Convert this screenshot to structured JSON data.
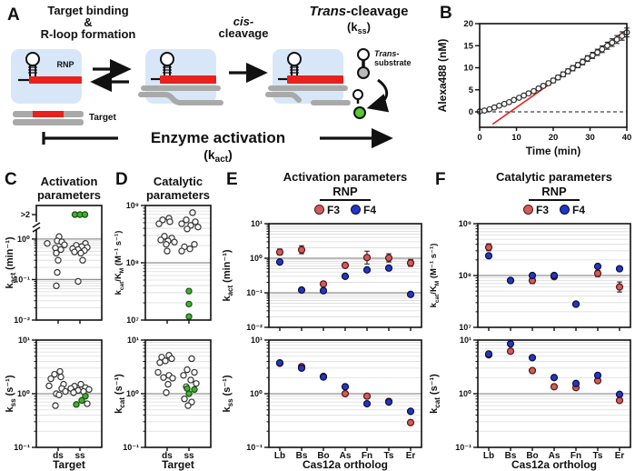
{
  "figure": {
    "panels": {
      "a": {
        "label": "A",
        "step1": [
          "Target binding",
          "&",
          "R-loop formation"
        ],
        "step2": [
          "cis-",
          "cleavage"
        ],
        "step3_title": [
          "Trans",
          "-cleavage"
        ],
        "step3_k": [
          "(k",
          "ss",
          ")"
        ],
        "rnp": "RNP",
        "target": "Target",
        "trans_substrate": [
          "Trans-",
          "substrate"
        ],
        "bottom": "Enzyme activation",
        "bottom_k": [
          "(k",
          "act",
          ")"
        ]
      },
      "b": {
        "label": "B"
      },
      "c": {
        "label": "C",
        "title": [
          "Activation",
          "parameters"
        ]
      },
      "d": {
        "label": "D",
        "title": [
          "Catalytic",
          "parameters"
        ]
      },
      "e": {
        "label": "E",
        "title": "Activation parameters",
        "rnp": "RNP",
        "legend": [
          {
            "label": "F3",
            "color": "#d05c5c",
            "border": "#5a1212"
          },
          {
            "label": "F4",
            "color": "#2236c9",
            "border": "#0a1030"
          }
        ]
      },
      "f": {
        "label": "F",
        "title": "Catalytic parameters",
        "rnp": "RNP",
        "legend": [
          {
            "label": "F3",
            "color": "#d05c5c",
            "border": "#5a1212"
          },
          {
            "label": "F4",
            "color": "#2236c9",
            "border": "#0a1030"
          }
        ]
      }
    },
    "colors": {
      "crRNA_red": "#e8211d",
      "rnp_box_blue": "#d8e7f8",
      "target_gray": "#a9a9a9",
      "product_green": "#55c832",
      "open_marker": "#ffffff",
      "green_marker": "#3db22e",
      "f3_red": "#d05c5c",
      "f4_blue": "#2236c9",
      "fit_line_red": "#e8211d"
    }
  },
  "chart_data": [
    {
      "id": "B",
      "type": "scatter",
      "xlabel": "Time (min)",
      "ylabel": "Alexa488 (nM)",
      "xlim": [
        0,
        40
      ],
      "ylim": [
        -3.5,
        20
      ],
      "xticks": [
        0,
        10,
        20,
        30,
        40
      ],
      "yticks": [
        0,
        5,
        10,
        15,
        20
      ],
      "x": [
        0,
        1.3,
        2.7,
        4,
        5.3,
        6.7,
        8,
        9.3,
        10.7,
        12,
        13.3,
        14.7,
        16,
        17.3,
        18.7,
        20,
        21.3,
        22.7,
        24,
        25.3,
        26.7,
        28,
        29.3,
        30.7,
        32,
        33.3,
        34.7,
        36,
        37.3,
        38.7,
        40
      ],
      "y": [
        0.1,
        0.3,
        0.6,
        1.0,
        1.4,
        1.8,
        2.2,
        2.7,
        3.2,
        3.7,
        4.2,
        4.7,
        5.3,
        5.9,
        6.5,
        7.1,
        7.8,
        8.5,
        9.2,
        9.9,
        10.6,
        11.3,
        12.1,
        12.8,
        13.5,
        14.2,
        15.0,
        15.7,
        16.4,
        17.2,
        18.0
      ],
      "yerr": [
        0.15,
        0.15,
        0.2,
        0.2,
        0.25,
        0.25,
        0.3,
        0.3,
        0.3,
        0.35,
        0.35,
        0.4,
        0.4,
        0.45,
        0.45,
        0.5,
        0.5,
        0.55,
        0.55,
        0.6,
        0.6,
        0.65,
        0.65,
        0.7,
        0.7,
        0.75,
        0.8,
        0.85,
        0.9,
        0.95,
        1.0
      ],
      "fit_line": {
        "x1": 3.5,
        "y1": -2.8,
        "x2": 40,
        "y2": 18.6
      },
      "zero_line": 0
    },
    {
      "id": "C1",
      "type": "strip-log",
      "ylabel_segs": [
        [
          "k",
          ""
        ],
        [
          "act",
          "sub"
        ],
        [
          " (min⁻¹)",
          ""
        ]
      ],
      "ylog": [
        -2,
        0.2
      ],
      "yticks": [
        {
          "exp": 0,
          "label": "10⁰"
        },
        {
          "exp": -1,
          "label": "10⁻¹"
        },
        {
          "exp": -2,
          "label": "10⁻²"
        }
      ],
      "break_label": ">2",
      "categories": [
        "ds",
        "ss"
      ],
      "show_xticklabels": false,
      "groups": [
        {
          "category": "ds",
          "open": [
            1.15,
            0.9,
            0.85,
            0.78,
            0.72,
            0.6,
            0.55,
            0.45,
            0.3,
            0.15,
            0.07
          ],
          "open_dx": [
            1,
            -1,
            4,
            -12,
            7,
            -3,
            3,
            -2,
            0,
            -1,
            -2
          ]
        },
        {
          "category": "ss",
          "open": [
            0.78,
            0.7,
            0.65,
            0.62,
            0.58,
            0.55,
            0.52,
            0.48,
            0.45,
            0.3,
            0.09
          ],
          "open_dx": [
            6,
            -4,
            2,
            8,
            -8,
            -2,
            5,
            -6,
            1,
            3,
            -2
          ],
          "green_above_break": 3
        }
      ]
    },
    {
      "id": "C2",
      "type": "strip-log",
      "ylabel_segs": [
        [
          "k",
          ""
        ],
        [
          "ss",
          "sub"
        ],
        [
          " (s⁻¹)",
          ""
        ]
      ],
      "ylog": [
        -1,
        1
      ],
      "yticks": [
        {
          "exp": 1,
          "label": "10¹"
        },
        {
          "exp": 0,
          "label": "10⁰"
        },
        {
          "exp": -1,
          "label": "10⁻¹"
        }
      ],
      "categories": [
        "ds",
        "ss"
      ],
      "show_xticklabels": true,
      "xlabel": "Target",
      "groups": [
        {
          "category": "ds",
          "open": [
            2.6,
            2.3,
            2.05,
            1.9,
            1.5,
            1.4,
            1.25,
            1.1,
            1.0,
            0.95,
            0.6
          ],
          "open_dx": [
            2,
            -4,
            3,
            -8,
            6,
            -10,
            4,
            8,
            -2,
            1,
            -3
          ]
        },
        {
          "category": "ss",
          "open": [
            1.5,
            1.38,
            1.3,
            1.25,
            1.2,
            1.15,
            1.1,
            1.05,
            0.65
          ],
          "open_dx": [
            1,
            -6,
            6,
            -10,
            10,
            -2,
            4,
            -7,
            8
          ],
          "green": [
            0.9,
            0.75,
            0.63
          ],
          "green_dx": [
            6,
            2,
            -4
          ]
        }
      ]
    },
    {
      "id": "D1",
      "type": "strip-log",
      "ylabel_segs": [
        [
          "k",
          ""
        ],
        [
          "cat",
          "sub"
        ],
        [
          "/K",
          ""
        ],
        [
          "M",
          "sub"
        ],
        [
          " (M⁻¹ s⁻¹)",
          ""
        ]
      ],
      "ylog": [
        7,
        9
      ],
      "yticks": [
        {
          "exp": 9,
          "label": "10⁹"
        },
        {
          "exp": 8,
          "label": "10⁸"
        },
        {
          "exp": 7,
          "label": "10⁷"
        }
      ],
      "categories": [
        "ds",
        "ss"
      ],
      "show_xticklabels": false,
      "groups": [
        {
          "category": "ds",
          "open": [
            600000000,
            560000000,
            520000000,
            480000000,
            290000000,
            270000000,
            250000000,
            240000000,
            230000000,
            210000000,
            160000000
          ],
          "open_dx": [
            2,
            -5,
            3,
            -9,
            -3,
            5,
            -7,
            1,
            8,
            -1,
            0
          ]
        },
        {
          "category": "ss",
          "open": [
            750000000,
            560000000,
            520000000,
            480000000,
            450000000,
            420000000,
            390000000,
            210000000,
            190000000,
            175000000,
            160000000
          ],
          "open_dx": [
            4,
            -3,
            7,
            -8,
            2,
            10,
            -2,
            6,
            -5,
            1,
            -8
          ],
          "green": [
            32000000,
            19000000,
            11500000
          ],
          "green_dx": [
            0,
            0,
            0
          ]
        }
      ]
    },
    {
      "id": "D2",
      "type": "strip-log",
      "ylabel_segs": [
        [
          "k",
          ""
        ],
        [
          "cat",
          "sub"
        ],
        [
          " (s⁻¹)",
          ""
        ]
      ],
      "ylog": [
        -1,
        1
      ],
      "yticks": [
        {
          "exp": 1,
          "label": "10¹"
        },
        {
          "exp": 0,
          "label": "10⁰"
        },
        {
          "exp": -1,
          "label": "10⁻¹"
        }
      ],
      "categories": [
        "ds",
        "ss"
      ],
      "show_xticklabels": true,
      "xlabel": "Target",
      "groups": [
        {
          "category": "ds",
          "open": [
            5.2,
            4.8,
            4.5,
            4.1,
            3.8,
            2.5,
            2.2,
            2.0,
            1.95,
            1.5,
            1.05
          ],
          "open_dx": [
            2,
            -6,
            5,
            -2,
            -8,
            -10,
            2,
            -4,
            6,
            1,
            -1
          ]
        },
        {
          "category": "ss",
          "open": [
            4.5,
            2.8,
            2.5,
            2.2,
            1.8,
            1.55,
            1.35,
            0.8,
            0.7,
            0.6
          ],
          "open_dx": [
            3,
            -2,
            6,
            -6,
            2,
            8,
            -3,
            -5,
            3,
            -1
          ],
          "green": [
            1.25,
            1.2,
            1.0
          ],
          "green_dx": [
            -2,
            6,
            0
          ]
        }
      ]
    },
    {
      "id": "E1",
      "type": "dot-log",
      "ylabel_segs": [
        [
          "k",
          ""
        ],
        [
          "act",
          "sub"
        ],
        [
          " (min⁻¹)",
          ""
        ]
      ],
      "ylog": [
        -2,
        1
      ],
      "yticks": [
        {
          "exp": 1,
          "label": "10¹"
        },
        {
          "exp": 0,
          "label": "10⁰"
        },
        {
          "exp": -1,
          "label": "10⁻¹"
        },
        {
          "exp": -2,
          "label": "10⁻²"
        }
      ],
      "categories": [
        "Lb",
        "Bs",
        "Bo",
        "As",
        "Fn",
        "Ts",
        "Er"
      ],
      "show_xticklabels": false,
      "series": [
        {
          "name": "F3",
          "values": [
            1.5,
            1.75,
            0.18,
            0.62,
            1.05,
            1.02,
            0.73
          ],
          "err": [
            [
              1.25,
              1.85
            ],
            [
              1.35,
              2.3
            ],
            [
              0.155,
              0.21
            ],
            [
              0.54,
              0.72
            ],
            [
              0.68,
              1.6
            ],
            [
              0.78,
              1.35
            ],
            [
              0.58,
              0.92
            ]
          ]
        },
        {
          "name": "F4",
          "values": [
            0.78,
            0.12,
            0.115,
            0.3,
            0.46,
            0.52,
            0.09
          ],
          "err": [
            [
              0.7,
              0.88
            ],
            null,
            null,
            [
              0.27,
              0.34
            ],
            [
              0.4,
              0.53
            ],
            [
              0.46,
              0.59
            ],
            null
          ]
        }
      ]
    },
    {
      "id": "E2",
      "type": "dot-log",
      "ylabel_segs": [
        [
          "k",
          ""
        ],
        [
          "ss",
          "sub"
        ],
        [
          " (s⁻¹)",
          ""
        ]
      ],
      "ylog": [
        -1,
        1
      ],
      "yticks": [
        {
          "exp": 1,
          "label": "10¹"
        },
        {
          "exp": 0,
          "label": "10⁰"
        },
        {
          "exp": -1,
          "label": "10⁻¹"
        }
      ],
      "categories": [
        "Lb",
        "Bs",
        "Bo",
        "As",
        "Fn",
        "Ts",
        "Er"
      ],
      "show_xticklabels": true,
      "xlabel": "Cas12a ortholog",
      "series": [
        {
          "name": "F3",
          "values": [
            3.7,
            3.2,
            2.1,
            1.0,
            0.9,
            0.72,
            0.29
          ],
          "err": [
            null,
            null,
            null,
            null,
            null,
            null,
            null
          ]
        },
        {
          "name": "F4",
          "values": [
            3.75,
            3.0,
            2.05,
            1.35,
            0.65,
            0.7,
            0.47
          ],
          "err": [
            null,
            null,
            null,
            null,
            null,
            null,
            null
          ]
        }
      ]
    },
    {
      "id": "F1",
      "type": "dot-log",
      "ylabel_segs": [
        [
          "k",
          ""
        ],
        [
          "cat",
          "sub"
        ],
        [
          "/K",
          ""
        ],
        [
          "M",
          "sub"
        ],
        [
          " (M⁻¹ s⁻¹)",
          ""
        ]
      ],
      "ylog": [
        7,
        9
      ],
      "yticks": [
        {
          "exp": 9,
          "label": "10⁹"
        },
        {
          "exp": 8,
          "label": "10⁸"
        },
        {
          "exp": 7,
          "label": "10⁷"
        }
      ],
      "categories": [
        "Lb",
        "Bs",
        "Bo",
        "As",
        "Fn",
        "Ts",
        "Er"
      ],
      "show_xticklabels": false,
      "series": [
        {
          "name": "F3",
          "values": [
            350000000,
            80000000,
            80000000,
            95000000,
            28000000,
            110000000,
            60000000
          ],
          "err": [
            [
              300000000,
              410000000
            ],
            null,
            [
              70000000,
              90000000
            ],
            [
              85000000,
              105000000
            ],
            null,
            [
              95000000,
              125000000
            ],
            [
              48000000,
              75000000
            ]
          ]
        },
        {
          "name": "F4",
          "values": [
            240000000,
            80000000,
            100000000,
            100000000,
            28000000,
            150000000,
            135000000
          ],
          "err": [
            null,
            null,
            null,
            null,
            null,
            null,
            null
          ]
        }
      ]
    },
    {
      "id": "F2",
      "type": "dot-log",
      "ylabel_segs": [
        [
          "k",
          ""
        ],
        [
          "cat",
          "sub"
        ],
        [
          " (s⁻¹)",
          ""
        ]
      ],
      "ylog": [
        -1,
        1
      ],
      "yticks": [
        {
          "exp": 1,
          "label": "10¹"
        },
        {
          "exp": 0,
          "label": "10⁰"
        },
        {
          "exp": -1,
          "label": "10⁻¹"
        }
      ],
      "categories": [
        "Lb",
        "Bs",
        "Bo",
        "As",
        "Fn",
        "Ts",
        "Er"
      ],
      "show_xticklabels": true,
      "xlabel": "Cas12a ortholog",
      "series": [
        {
          "name": "F3",
          "values": [
            5.3,
            6.2,
            2.7,
            1.35,
            1.3,
            1.75,
            0.75
          ],
          "err": [
            null,
            null,
            null,
            null,
            null,
            null,
            null
          ]
        },
        {
          "name": "F4",
          "values": [
            5.5,
            8.5,
            4.7,
            2.0,
            1.55,
            2.2,
            0.97
          ],
          "err": [
            null,
            null,
            null,
            null,
            null,
            null,
            null
          ]
        }
      ]
    }
  ]
}
